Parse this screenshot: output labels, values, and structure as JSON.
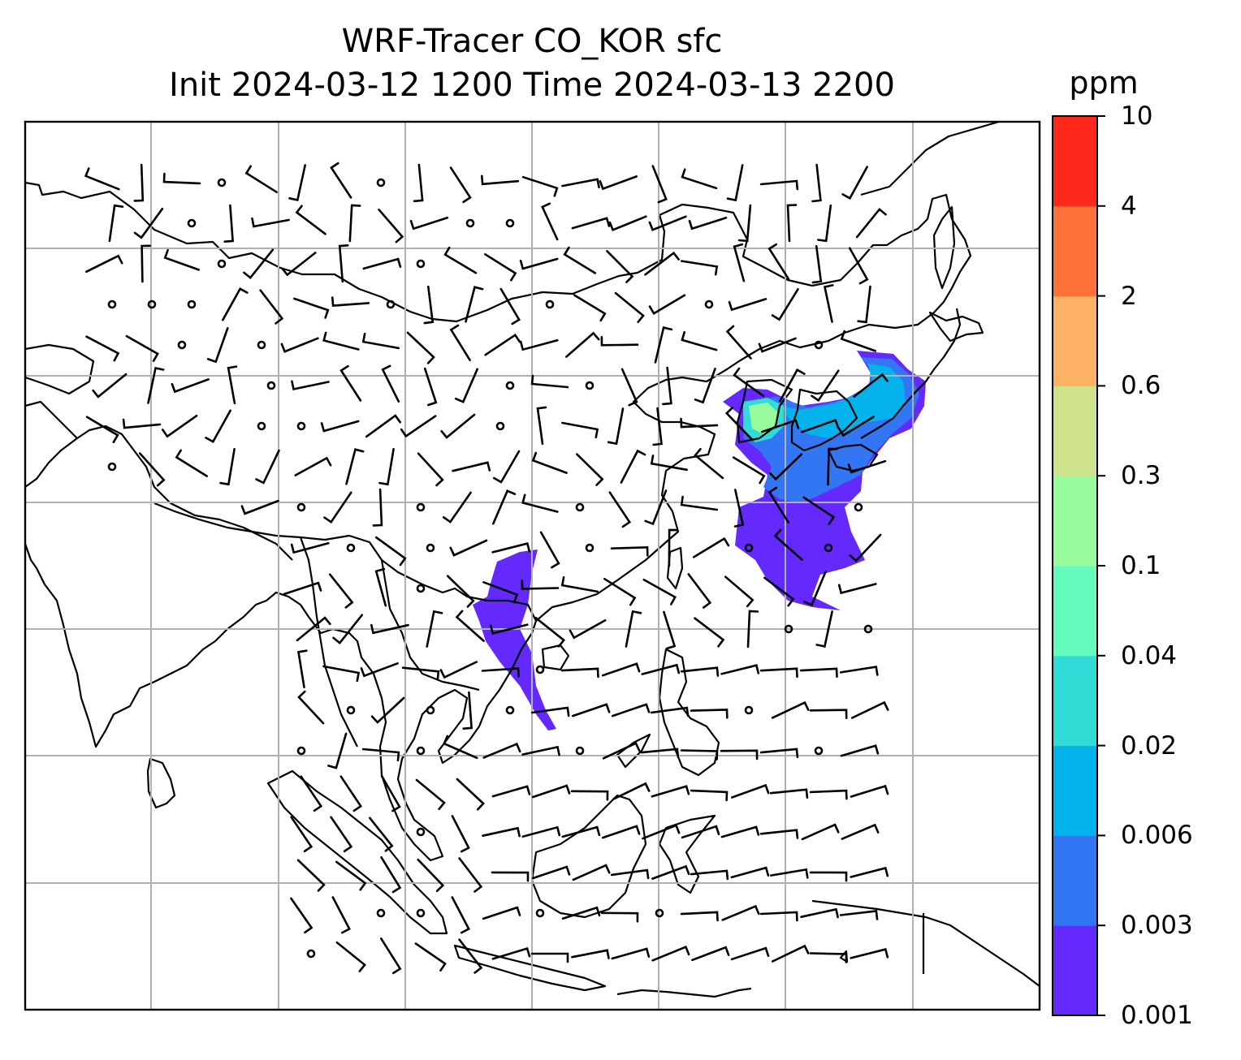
{
  "title": {
    "line1": "WRF-Tracer CO_KOR sfc",
    "line2": "Init 2024-03-12 1200 Time 2024-03-13 2200"
  },
  "map": {
    "projection": "Mercator",
    "region": "East and Southeast Asia",
    "gridlines": true,
    "coastlines": true,
    "wind_barbs": true,
    "field": "CO_KOR tracer concentration (sfc)"
  },
  "colorbar": {
    "unit": "ppm",
    "ticks": [
      "0.001",
      "0.003",
      "0.006",
      "0.02",
      "0.04",
      "0.1",
      "0.3",
      "0.6",
      "2",
      "4",
      "10"
    ],
    "colors": [
      "#6429fd",
      "#3276f4",
      "#04b3eb",
      "#30dcd5",
      "#64fbbc",
      "#98fb9c",
      "#cde28a",
      "#fdb164",
      "#fe7239",
      "#fe291a"
    ]
  }
}
